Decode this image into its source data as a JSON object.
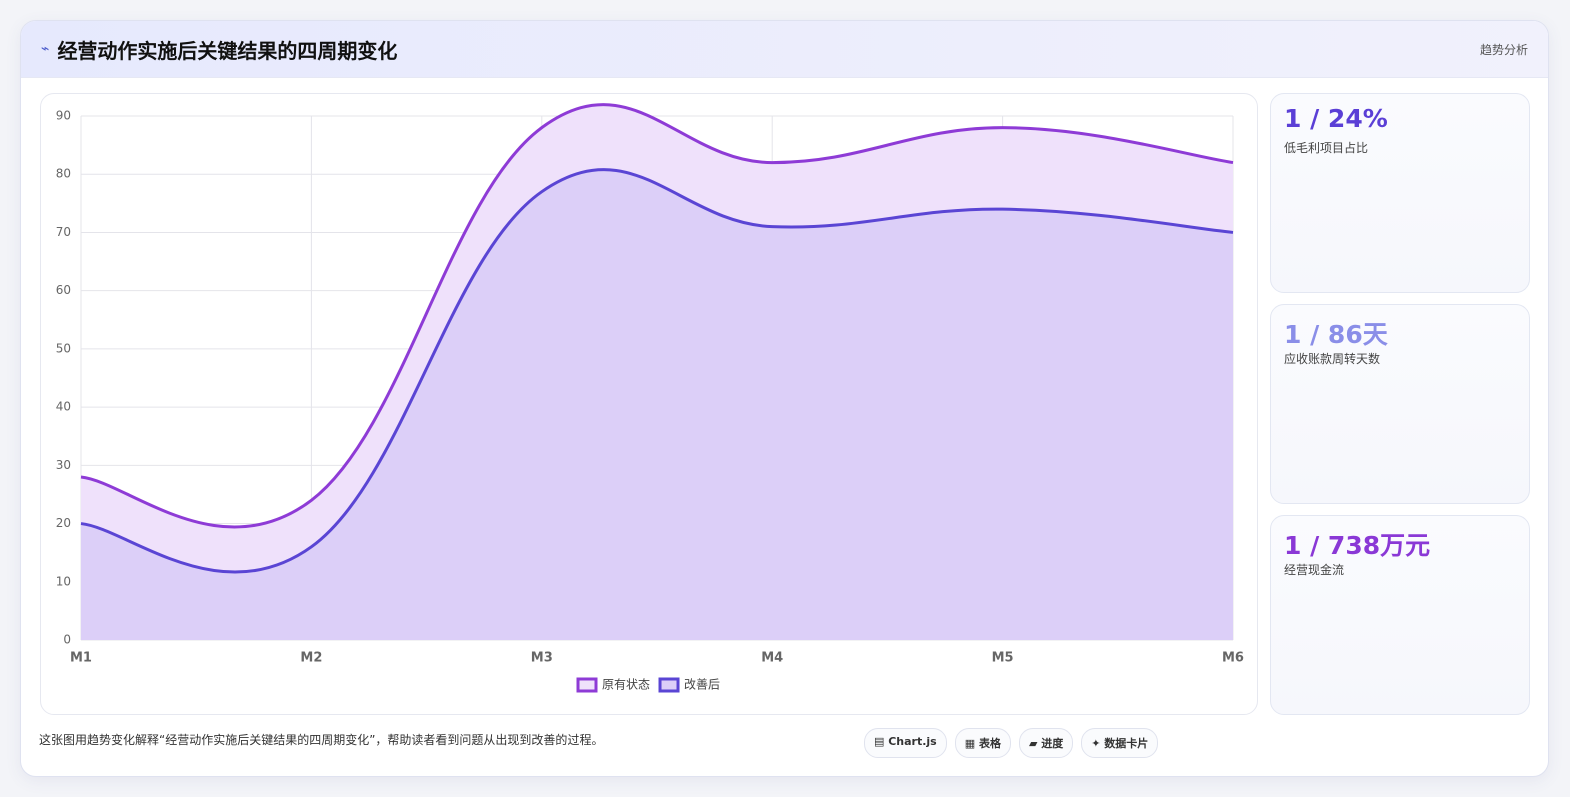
{
  "header": {
    "icon": "⌁",
    "title": "经营动作实施后关键结果的四周期变化",
    "tag": "趋势分析"
  },
  "chart_data": {
    "type": "area",
    "categories": [
      "M1",
      "M2",
      "M3",
      "M4",
      "M5",
      "M6"
    ],
    "series": [
      {
        "name": "原有状态",
        "color": "#8e3bd6",
        "fill": "#efe1fb",
        "values": [
          28,
          24,
          88,
          82,
          88,
          82
        ]
      },
      {
        "name": "改善后",
        "color": "#5a45d4",
        "fill": "#dccff8",
        "values": [
          20,
          16,
          77,
          71,
          74,
          70
        ]
      }
    ],
    "ylim": [
      0,
      90
    ],
    "yticks": [
      0,
      10,
      20,
      30,
      40,
      50,
      60,
      70,
      80,
      90
    ],
    "grid": true,
    "legend": "bottom"
  },
  "kpis": [
    {
      "value": "1 / 24%",
      "label": "低毛利项目占比",
      "color": "#5b3fd6"
    },
    {
      "value": "1 / 86天",
      "label": "应收账款周转天数",
      "color": "#8a8ee8"
    },
    {
      "value": "1 / 738万元",
      "label": "经营现金流",
      "color": "#8a38d6"
    }
  ],
  "caption": "这张图用趋势变化解释“经营动作实施后关键结果的四周期变化”，帮助读者看到问题从出现到改善的过程。",
  "chips": [
    "▤ Chart.js",
    "▦ 表格",
    "▰ 进度",
    "✦ 数据卡片"
  ]
}
